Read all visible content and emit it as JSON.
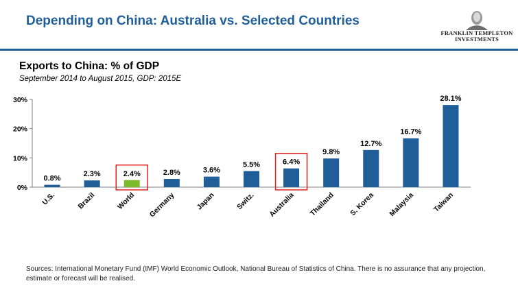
{
  "header": {
    "title": "Depending on China: Australia vs. Selected Countries",
    "logo_lines": [
      "FRANKLIN TEMPLETON",
      "INVESTMENTS"
    ]
  },
  "chart_data": {
    "type": "bar",
    "title": "Exports to China: % of GDP",
    "subtitle": "September 2014 to August 2015, GDP: 2015E",
    "categories": [
      "U.S.",
      "Brazil",
      "World",
      "Germany",
      "Japan",
      "Switz.",
      "Australia",
      "Thailand",
      "S. Korea",
      "Malaysia",
      "Taiwan"
    ],
    "values": [
      0.8,
      2.3,
      2.4,
      2.8,
      3.6,
      5.5,
      6.4,
      9.8,
      12.7,
      16.7,
      28.1
    ],
    "value_labels": [
      "0.8%",
      "2.3%",
      "2.4%",
      "2.8%",
      "3.6%",
      "5.5%",
      "6.4%",
      "9.8%",
      "12.7%",
      "16.7%",
      "28.1%"
    ],
    "ylim": [
      0,
      30
    ],
    "yticks": [
      "0%",
      "10%",
      "20%",
      "30%"
    ],
    "grid": false,
    "colors": {
      "default": "#1f5e99",
      "highlight": "#7cba2c",
      "box": "#e02020"
    },
    "highlighted": [
      "World"
    ],
    "boxed": [
      "World",
      "Australia"
    ]
  },
  "footer": {
    "sources": "Sources: International Monetary Fund (IMF) World Economic Outlook, National Bureau of Statistics  of China. There is no assurance that  any projection, estimate  or forecast will be realised."
  }
}
